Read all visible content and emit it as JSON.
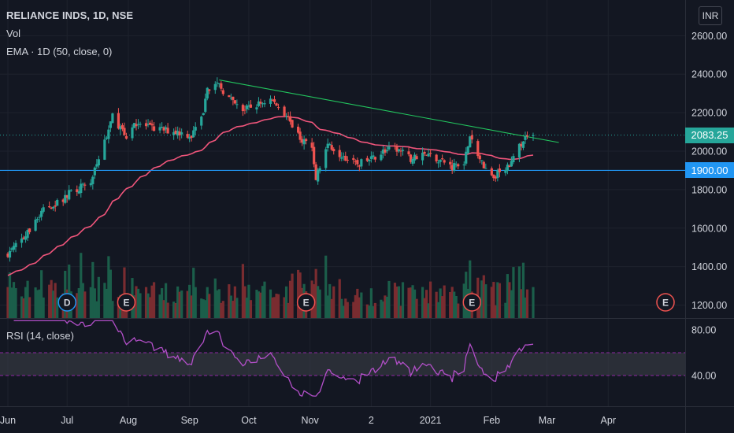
{
  "header": {
    "symbol_title": "RELIANCE INDS, 1D, NSE",
    "vol_label": "Vol",
    "ema_label": "EMA · 1D (50, close, 0)",
    "rsi_label": "RSI (14, close)",
    "currency": "INR"
  },
  "price_tags": {
    "last_price": "2083.25",
    "horizontal_line": "1900.00"
  },
  "colors": {
    "background": "#131722",
    "up_candle": "#26a69a",
    "down_candle": "#ef5350",
    "ema": "#f0557b",
    "trendline": "#22c55e",
    "horizontal_line": "#2196f3",
    "rsi_line": "#b24fc8",
    "rsi_band": "#3a3d46"
  },
  "events": [
    {
      "letter": "D",
      "date": "2020-07-01",
      "kind": "dividend",
      "color": "#2196f3"
    },
    {
      "letter": "E",
      "date": "2020-07-31",
      "kind": "earnings",
      "color": "#ef5350"
    },
    {
      "letter": "E",
      "date": "2020-10-30",
      "kind": "earnings",
      "color": "#ef5350"
    },
    {
      "letter": "E",
      "date": "2021-01-22",
      "kind": "earnings",
      "color": "#ef5350"
    },
    {
      "letter": "E",
      "date": "2021-04-30",
      "kind": "earnings",
      "color": "#ef5350"
    }
  ],
  "chart_data": {
    "type": "candlestick",
    "price_axis": {
      "ticks": [
        1200,
        1400,
        1600,
        1800,
        2000,
        2200,
        2400,
        2600
      ],
      "tick_labels": [
        "1200.00",
        "1400.00",
        "1600.00",
        "1800.00",
        "2000.00",
        "2200.00",
        "2400.00",
        "2600.00"
      ],
      "range": [
        1100,
        2700
      ]
    },
    "rsi_axis": {
      "ticks": [
        40,
        80
      ],
      "tick_labels": [
        "40.00",
        "80.00"
      ],
      "band": [
        40,
        60
      ],
      "range": [
        20,
        90
      ]
    },
    "time_axis": {
      "ticks": [
        "2020-06-01",
        "2020-07-01",
        "2020-08-01",
        "2020-09-01",
        "2020-10-01",
        "2020-11-01",
        "2020-12-02",
        "2021-01-01",
        "2021-02-01",
        "2021-03-01",
        "2021-04-01"
      ],
      "tick_labels": [
        "Jun",
        "Jul",
        "Aug",
        "Sep",
        "Oct",
        "Nov",
        "2",
        "2021",
        "Feb",
        "Mar",
        "Apr"
      ],
      "range": [
        "2020-06-01",
        "2021-04-30"
      ]
    },
    "last_price": 2083.25,
    "horizontal_line": 1900,
    "trendline": {
      "start": {
        "date": "2020-09-16",
        "price": 2370
      },
      "end": {
        "date": "2021-03-07",
        "price": 2045
      }
    },
    "ema_period": 50,
    "rsi_period": 14,
    "ohlc_keypoints": [
      [
        "2020-06-01",
        1470
      ],
      [
        "2020-06-10",
        1560
      ],
      [
        "2020-06-19",
        1700
      ],
      [
        "2020-06-26",
        1730
      ],
      [
        "2020-07-03",
        1790
      ],
      [
        "2020-07-13",
        1840
      ],
      [
        "2020-07-20",
        2050
      ],
      [
        "2020-07-24",
        2180
      ],
      [
        "2020-07-31",
        2080
      ],
      [
        "2020-08-04",
        2150
      ],
      [
        "2020-08-12",
        2120
      ],
      [
        "2020-08-19",
        2110
      ],
      [
        "2020-08-26",
        2100
      ],
      [
        "2020-09-02",
        2080
      ],
      [
        "2020-09-08",
        2180
      ],
      [
        "2020-09-10",
        2330
      ],
      [
        "2020-09-16",
        2340
      ],
      [
        "2020-09-23",
        2250
      ],
      [
        "2020-09-28",
        2210
      ],
      [
        "2020-10-05",
        2240
      ],
      [
        "2020-10-12",
        2270
      ],
      [
        "2020-10-19",
        2200
      ],
      [
        "2020-10-26",
        2080
      ],
      [
        "2020-11-02",
        2020
      ],
      [
        "2020-11-04",
        1860
      ],
      [
        "2020-11-10",
        2040
      ],
      [
        "2020-11-17",
        1980
      ],
      [
        "2020-11-24",
        1930
      ],
      [
        "2020-12-01",
        1950
      ],
      [
        "2020-12-08",
        2000
      ],
      [
        "2020-12-15",
        2010
      ],
      [
        "2020-12-22",
        1960
      ],
      [
        "2020-12-29",
        1990
      ],
      [
        "2021-01-05",
        1960
      ],
      [
        "2021-01-12",
        1920
      ],
      [
        "2021-01-18",
        1950
      ],
      [
        "2021-01-21",
        2070
      ],
      [
        "2021-01-25",
        1970
      ],
      [
        "2021-02-01",
        1860
      ],
      [
        "2021-02-08",
        1920
      ],
      [
        "2021-02-11",
        1940
      ],
      [
        "2021-02-17",
        2060
      ],
      [
        "2021-02-22",
        2083
      ]
    ]
  }
}
